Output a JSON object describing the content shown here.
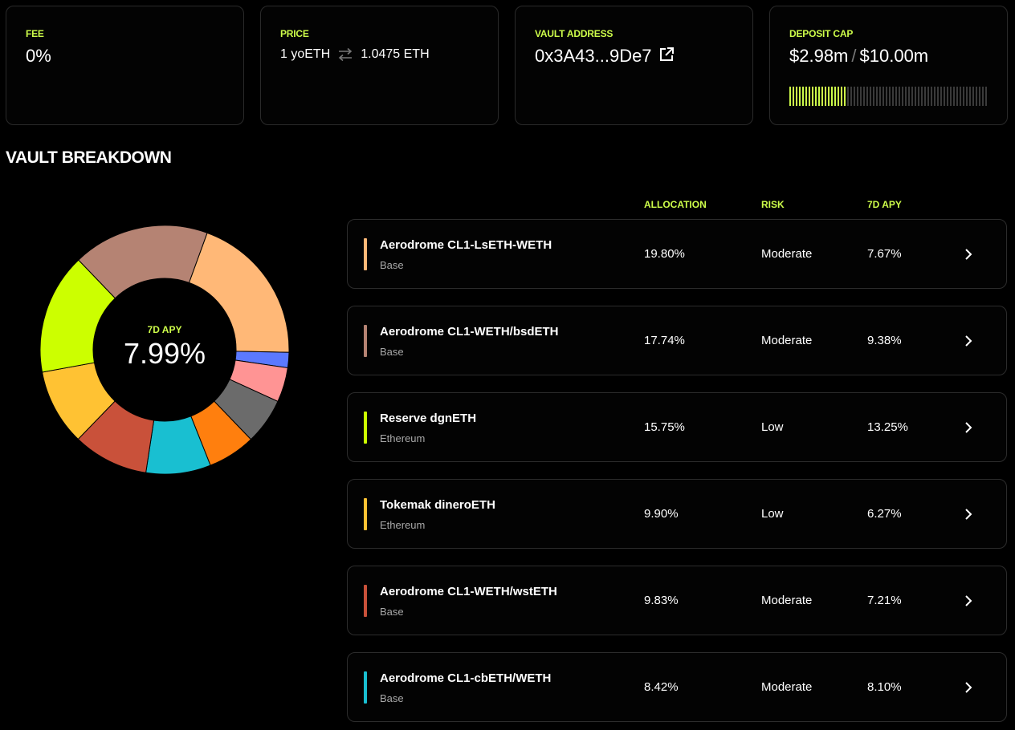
{
  "stats": {
    "fee": {
      "label": "FEE",
      "value": "0%"
    },
    "price": {
      "label": "PRICE",
      "left": "1 yoETH",
      "right": "1.0475 ETH",
      "icon": "swap-arrows-icon"
    },
    "vault_address": {
      "label": "VAULT ADDRESS",
      "value": "0x3A43...9De7",
      "icon": "external-link-icon"
    },
    "deposit_cap": {
      "label": "DEPOSIT CAP",
      "current": "$2.98m",
      "separator": "/",
      "max": "$10.00m",
      "fill_fraction": 0.298,
      "fill_color": "#cdfc4a",
      "empty_color": "#3a3a3a"
    }
  },
  "breakdown": {
    "title": "VAULT BREAKDOWN",
    "center_label": "7D APY",
    "center_value": "7.99%",
    "columns": {
      "allocation": "ALLOCATION",
      "risk": "RISK",
      "apy": "7D APY"
    },
    "rows": [
      {
        "name": "Aerodrome CL1-LsETH-WETH",
        "chain": "Base",
        "allocation": "19.80%",
        "risk": "Moderate",
        "apy": "7.67%",
        "color": "#ffb877"
      },
      {
        "name": "Aerodrome CL1-WETH/bsdETH",
        "chain": "Base",
        "allocation": "17.74%",
        "risk": "Moderate",
        "apy": "9.38%",
        "color": "#b58373"
      },
      {
        "name": "Reserve dgnETH",
        "chain": "Ethereum",
        "allocation": "15.75%",
        "risk": "Low",
        "apy": "13.25%",
        "color": "#ccff00"
      },
      {
        "name": "Tokemak dineroETH",
        "chain": "Ethereum",
        "allocation": "9.90%",
        "risk": "Low",
        "apy": "6.27%",
        "color": "#ffc233"
      },
      {
        "name": "Aerodrome CL1-WETH/wstETH",
        "chain": "Base",
        "allocation": "9.83%",
        "risk": "Moderate",
        "apy": "7.21%",
        "color": "#c9513a"
      },
      {
        "name": "Aerodrome CL1-cbETH/WETH",
        "chain": "Base",
        "allocation": "8.42%",
        "risk": "Moderate",
        "apy": "8.10%",
        "color": "#19bfd1"
      }
    ],
    "chevron_icon": "chevron-right-icon"
  },
  "chart_data": {
    "type": "pie",
    "style": "donut",
    "slices": [
      {
        "value": 19.8,
        "color": "#ffb877"
      },
      {
        "value": 2.0,
        "color": "#5b79ff"
      },
      {
        "value": 4.5,
        "color": "#ff9494"
      },
      {
        "value": 6.0,
        "color": "#6b6b6b"
      },
      {
        "value": 6.2,
        "color": "#ff7f0e"
      },
      {
        "value": 8.42,
        "color": "#19bfd1"
      },
      {
        "value": 9.83,
        "color": "#c9513a"
      },
      {
        "value": 9.9,
        "color": "#ffc233"
      },
      {
        "value": 15.75,
        "color": "#ccff00"
      },
      {
        "value": 17.74,
        "color": "#b58373"
      }
    ],
    "start_angle_deg": 20,
    "direction": "clockwise"
  }
}
